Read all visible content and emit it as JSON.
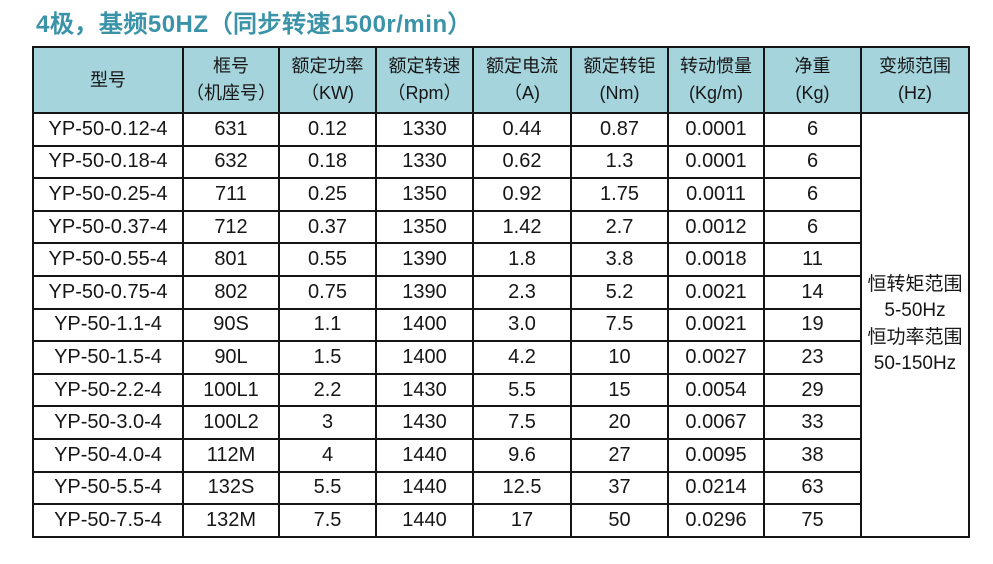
{
  "title": "4极，基频50HZ（同步转速1500r/min）",
  "colors": {
    "title_color": "#3a93a8",
    "header_bg": "#a5d4dd",
    "border_color": "#151515"
  },
  "table": {
    "headers": [
      {
        "line1": "型号",
        "line2": ""
      },
      {
        "line1": "框号",
        "line2": "（机座号）"
      },
      {
        "line1": "额定功率",
        "line2": "（KW)"
      },
      {
        "line1": "额定转速",
        "line2": "（Rpm）"
      },
      {
        "line1": "额定电流",
        "line2": "（A)"
      },
      {
        "line1": "额定转钜",
        "line2": "(Nm)"
      },
      {
        "line1": "转动惯量",
        "line2": "(Kg/m)"
      },
      {
        "line1": "净重",
        "line2": "(Kg)"
      },
      {
        "line1": "变频范围",
        "line2": "(Hz)"
      }
    ],
    "rows": [
      [
        "YP-50-0.12-4",
        "631",
        "0.12",
        "1330",
        "0.44",
        "0.87",
        "0.0001",
        "6"
      ],
      [
        "YP-50-0.18-4",
        "632",
        "0.18",
        "1330",
        "0.62",
        "1.3",
        "0.0001",
        "6"
      ],
      [
        "YP-50-0.25-4",
        "711",
        "0.25",
        "1350",
        "0.92",
        "1.75",
        "0.0011",
        "6"
      ],
      [
        "YP-50-0.37-4",
        "712",
        "0.37",
        "1350",
        "1.42",
        "2.7",
        "0.0012",
        "6"
      ],
      [
        "YP-50-0.55-4",
        "801",
        "0.55",
        "1390",
        "1.8",
        "3.8",
        "0.0018",
        "11"
      ],
      [
        "YP-50-0.75-4",
        "802",
        "0.75",
        "1390",
        "2.3",
        "5.2",
        "0.0021",
        "14"
      ],
      [
        "YP-50-1.1-4",
        "90S",
        "1.1",
        "1400",
        "3.0",
        "7.5",
        "0.0021",
        "19"
      ],
      [
        "YP-50-1.5-4",
        "90L",
        "1.5",
        "1400",
        "4.2",
        "10",
        "0.0027",
        "23"
      ],
      [
        "YP-50-2.2-4",
        "100L1",
        "2.2",
        "1430",
        "5.5",
        "15",
        "0.0054",
        "29"
      ],
      [
        "YP-50-3.0-4",
        "100L2",
        "3",
        "1430",
        "7.5",
        "20",
        "0.0067",
        "33"
      ],
      [
        "YP-50-4.0-4",
        "112M",
        "4",
        "1440",
        "9.6",
        "27",
        "0.0095",
        "38"
      ],
      [
        "YP-50-5.5-4",
        "132S",
        "5.5",
        "1440",
        "12.5",
        "37",
        "0.0214",
        "63"
      ],
      [
        "YP-50-7.5-4",
        "132M",
        "7.5",
        "1440",
        "17",
        "50",
        "0.0296",
        "75"
      ]
    ],
    "freq_range_lines": [
      "恒转矩范围",
      "5-50Hz",
      "恒功率范围",
      "50-150Hz"
    ]
  }
}
